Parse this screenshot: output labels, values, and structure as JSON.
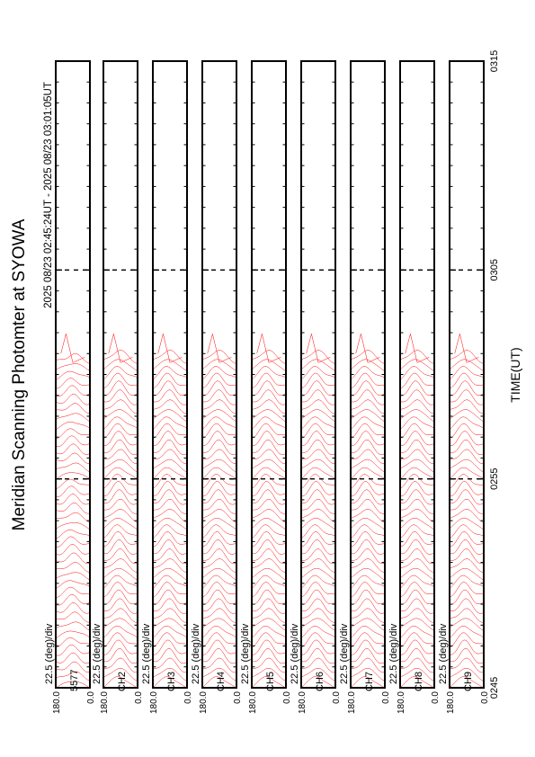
{
  "title": "Meridian Scanning Photomter at SYOWA",
  "time_range_text": "2025 08/23 02:45:24UT - 2025 08/23 03:01:05UT",
  "x_axis": {
    "label": "TIME(UT)",
    "ticks": [
      {
        "value": 0,
        "label": "0245"
      },
      {
        "value": 10,
        "label": "0255"
      },
      {
        "value": 20,
        "label": "0305"
      },
      {
        "value": 30,
        "label": "0315"
      }
    ]
  },
  "panels": [
    {
      "scale_label": "22.5 (deg)/div",
      "channel": "5577",
      "y_top": "180.0",
      "y_bottom": "0.0"
    },
    {
      "scale_label": "22.5 (deg)/div",
      "channel": "CH2",
      "y_top": "180.0",
      "y_bottom": "0.0"
    },
    {
      "scale_label": "22.5 (deg)/div",
      "channel": "CH3",
      "y_top": "180.0",
      "y_bottom": "0.0"
    },
    {
      "scale_label": "22.5 (deg)/div",
      "channel": "CH4",
      "y_top": "180.0",
      "y_bottom": "0.0"
    },
    {
      "scale_label": "22.5 (deg)/div",
      "channel": "CH5",
      "y_top": "180.0",
      "y_bottom": "0.0"
    },
    {
      "scale_label": "22.5 (deg)/div",
      "channel": "CH6",
      "y_top": "180.0",
      "y_bottom": "0.0"
    },
    {
      "scale_label": "22.5 (deg)/div",
      "channel": "CH7",
      "y_top": "180.0",
      "y_bottom": "0.0"
    },
    {
      "scale_label": "22.5 (deg)/div",
      "channel": "CH8",
      "y_top": "180.0",
      "y_bottom": "0.0"
    },
    {
      "scale_label": "22.5 (deg)/div",
      "channel": "CH9",
      "y_top": "180.0",
      "y_bottom": "0.0"
    }
  ],
  "chart_data": {
    "type": "line",
    "orientation": "rotated-90",
    "x_range_minutes": [
      0,
      30
    ],
    "data_end_minute": 16.0,
    "scan_count": 40,
    "y_range_deg": [
      0,
      180
    ],
    "trace_color": "#ff0000",
    "frame_color": "#000000",
    "grid": false
  }
}
